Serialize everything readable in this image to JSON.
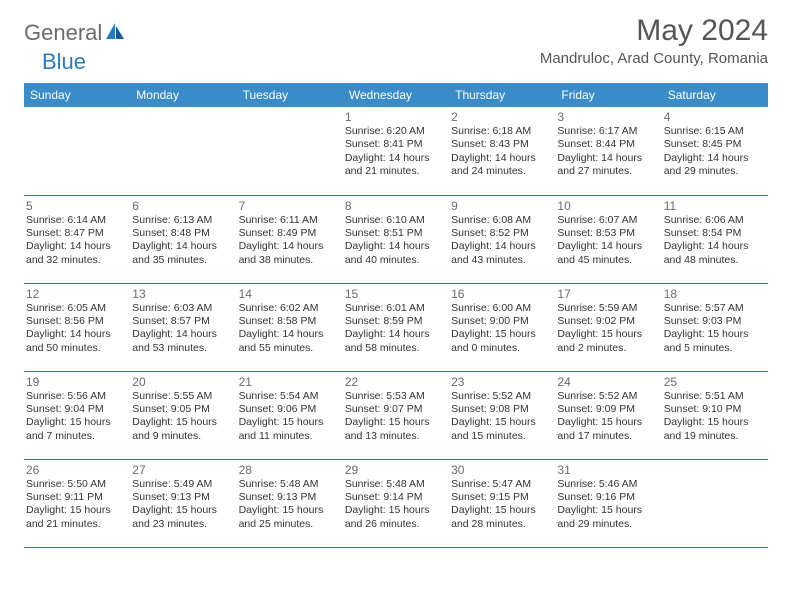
{
  "logo": {
    "general": "General",
    "blue": "Blue"
  },
  "title": "May 2024",
  "location": "Mandruloc, Arad County, Romania",
  "colors": {
    "header_bg": "#3a8bc9",
    "header_text": "#ffffff",
    "border": "#3a6b95",
    "title_color": "#555555",
    "daynum_color": "#6b6b6b",
    "text_color": "#333333",
    "logo_general": "#6b6b6b",
    "logo_blue": "#2d7bbf"
  },
  "days": [
    "Sunday",
    "Monday",
    "Tuesday",
    "Wednesday",
    "Thursday",
    "Friday",
    "Saturday"
  ],
  "weeks": [
    [
      null,
      null,
      null,
      {
        "n": "1",
        "sr": "6:20 AM",
        "ss": "8:41 PM",
        "dl": "14 hours and 21 minutes."
      },
      {
        "n": "2",
        "sr": "6:18 AM",
        "ss": "8:43 PM",
        "dl": "14 hours and 24 minutes."
      },
      {
        "n": "3",
        "sr": "6:17 AM",
        "ss": "8:44 PM",
        "dl": "14 hours and 27 minutes."
      },
      {
        "n": "4",
        "sr": "6:15 AM",
        "ss": "8:45 PM",
        "dl": "14 hours and 29 minutes."
      }
    ],
    [
      {
        "n": "5",
        "sr": "6:14 AM",
        "ss": "8:47 PM",
        "dl": "14 hours and 32 minutes."
      },
      {
        "n": "6",
        "sr": "6:13 AM",
        "ss": "8:48 PM",
        "dl": "14 hours and 35 minutes."
      },
      {
        "n": "7",
        "sr": "6:11 AM",
        "ss": "8:49 PM",
        "dl": "14 hours and 38 minutes."
      },
      {
        "n": "8",
        "sr": "6:10 AM",
        "ss": "8:51 PM",
        "dl": "14 hours and 40 minutes."
      },
      {
        "n": "9",
        "sr": "6:08 AM",
        "ss": "8:52 PM",
        "dl": "14 hours and 43 minutes."
      },
      {
        "n": "10",
        "sr": "6:07 AM",
        "ss": "8:53 PM",
        "dl": "14 hours and 45 minutes."
      },
      {
        "n": "11",
        "sr": "6:06 AM",
        "ss": "8:54 PM",
        "dl": "14 hours and 48 minutes."
      }
    ],
    [
      {
        "n": "12",
        "sr": "6:05 AM",
        "ss": "8:56 PM",
        "dl": "14 hours and 50 minutes."
      },
      {
        "n": "13",
        "sr": "6:03 AM",
        "ss": "8:57 PM",
        "dl": "14 hours and 53 minutes."
      },
      {
        "n": "14",
        "sr": "6:02 AM",
        "ss": "8:58 PM",
        "dl": "14 hours and 55 minutes."
      },
      {
        "n": "15",
        "sr": "6:01 AM",
        "ss": "8:59 PM",
        "dl": "14 hours and 58 minutes."
      },
      {
        "n": "16",
        "sr": "6:00 AM",
        "ss": "9:00 PM",
        "dl": "15 hours and 0 minutes."
      },
      {
        "n": "17",
        "sr": "5:59 AM",
        "ss": "9:02 PM",
        "dl": "15 hours and 2 minutes."
      },
      {
        "n": "18",
        "sr": "5:57 AM",
        "ss": "9:03 PM",
        "dl": "15 hours and 5 minutes."
      }
    ],
    [
      {
        "n": "19",
        "sr": "5:56 AM",
        "ss": "9:04 PM",
        "dl": "15 hours and 7 minutes."
      },
      {
        "n": "20",
        "sr": "5:55 AM",
        "ss": "9:05 PM",
        "dl": "15 hours and 9 minutes."
      },
      {
        "n": "21",
        "sr": "5:54 AM",
        "ss": "9:06 PM",
        "dl": "15 hours and 11 minutes."
      },
      {
        "n": "22",
        "sr": "5:53 AM",
        "ss": "9:07 PM",
        "dl": "15 hours and 13 minutes."
      },
      {
        "n": "23",
        "sr": "5:52 AM",
        "ss": "9:08 PM",
        "dl": "15 hours and 15 minutes."
      },
      {
        "n": "24",
        "sr": "5:52 AM",
        "ss": "9:09 PM",
        "dl": "15 hours and 17 minutes."
      },
      {
        "n": "25",
        "sr": "5:51 AM",
        "ss": "9:10 PM",
        "dl": "15 hours and 19 minutes."
      }
    ],
    [
      {
        "n": "26",
        "sr": "5:50 AM",
        "ss": "9:11 PM",
        "dl": "15 hours and 21 minutes."
      },
      {
        "n": "27",
        "sr": "5:49 AM",
        "ss": "9:13 PM",
        "dl": "15 hours and 23 minutes."
      },
      {
        "n": "28",
        "sr": "5:48 AM",
        "ss": "9:13 PM",
        "dl": "15 hours and 25 minutes."
      },
      {
        "n": "29",
        "sr": "5:48 AM",
        "ss": "9:14 PM",
        "dl": "15 hours and 26 minutes."
      },
      {
        "n": "30",
        "sr": "5:47 AM",
        "ss": "9:15 PM",
        "dl": "15 hours and 28 minutes."
      },
      {
        "n": "31",
        "sr": "5:46 AM",
        "ss": "9:16 PM",
        "dl": "15 hours and 29 minutes."
      },
      null
    ]
  ],
  "labels": {
    "sunrise": "Sunrise:",
    "sunset": "Sunset:",
    "daylight": "Daylight:"
  }
}
